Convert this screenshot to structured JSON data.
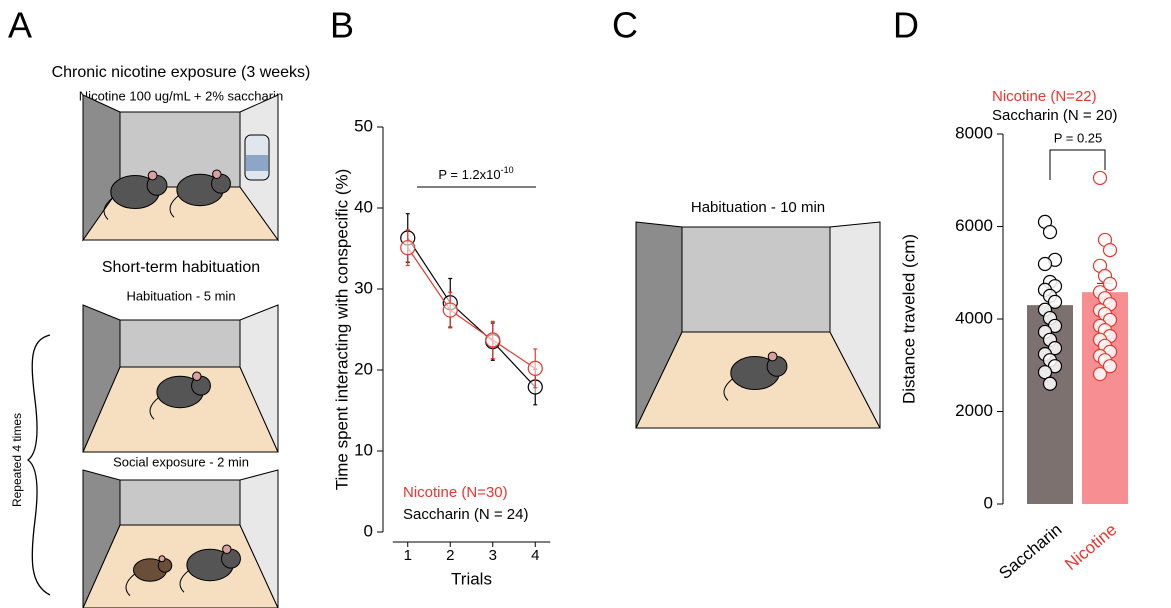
{
  "panel_labels": [
    "A",
    "B",
    "C",
    "D"
  ],
  "diagram_a": {
    "title": "Chronic nicotine exposure (3 weeks)",
    "subtitle": "Nicotine 100 ug/mL + 2% saccharin",
    "section": "Short-term habituation",
    "step1": "Habituation - 5 min",
    "step2": "Social exposure - 2 min",
    "repeat": "Repeated 4 times"
  },
  "diagram_c": {
    "title": "Habituation - 10 min"
  },
  "chart_data": [
    {
      "type": "line",
      "xlabel": "Trials",
      "ylabel": "Time spent interacting with conspecific (%)",
      "x": [
        1,
        2,
        3,
        4
      ],
      "xlim": [
        0.7,
        4.3
      ],
      "xticks": [
        1,
        2,
        3,
        4
      ],
      "ylim": [
        0,
        50
      ],
      "yticks": [
        0,
        10,
        20,
        30,
        40,
        50
      ],
      "annotation": {
        "text": "P = 1.2x10",
        "superscript": "-10"
      },
      "series": [
        {
          "name": "Saccharin (N = 24)",
          "color": "#000000",
          "values": [
            36.3,
            28.3,
            23.5,
            17.9
          ],
          "errors": [
            3.0,
            3.0,
            2.3,
            2.2
          ]
        },
        {
          "name": "Nicotine (N=30)",
          "color": "#e8372f",
          "values": [
            35.1,
            27.4,
            23.7,
            20.2
          ],
          "errors": [
            2.2,
            2.2,
            2.3,
            2.4
          ]
        }
      ]
    },
    {
      "type": "bar",
      "ylabel": "Distance traveled (cm)",
      "categories": [
        "Saccharin",
        "Nicotine"
      ],
      "values": [
        4300,
        4580
      ],
      "errors": [
        200,
        190
      ],
      "colors": [
        "#7d7170",
        "#f78f92"
      ],
      "label_colors": [
        "#000000",
        "#e8372f"
      ],
      "point_colors": [
        "#000000",
        "#e8372f"
      ],
      "points": [
        [
          6100,
          5880,
          5280,
          5190,
          4800,
          4710,
          4630,
          4500,
          4370,
          4200,
          4020,
          3850,
          3720,
          3550,
          3370,
          3240,
          3110,
          2980,
          2850,
          2600
        ],
        [
          7050,
          5710,
          5490,
          5150,
          4930,
          4760,
          4580,
          4450,
          4320,
          4190,
          4110,
          3980,
          3850,
          3760,
          3630,
          3550,
          3420,
          3290,
          3200,
          3110,
          2980,
          2810
        ]
      ],
      "ylim": [
        0,
        8000
      ],
      "yticks": [
        0,
        2000,
        4000,
        6000,
        8000
      ],
      "annotation": "P = 0.25",
      "legend": [
        {
          "label": "Nicotine (N=22)",
          "color": "#e8372f"
        },
        {
          "label": "Saccharin (N = 20)",
          "color": "#000000"
        }
      ]
    }
  ]
}
